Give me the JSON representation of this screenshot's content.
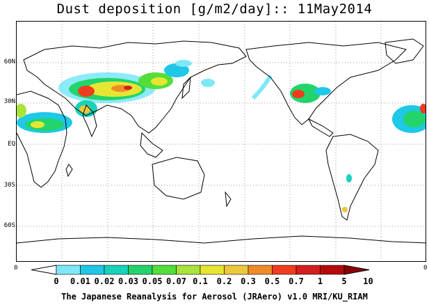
{
  "title": "Dust deposition [g/m2/day]:: 11May2014",
  "footer": "The Japanese Reanalysis for Aerosol (JRAero) v1.0 MRI/KU_RIAM",
  "lat_labels": [
    "60N",
    "30N",
    "EQ",
    "30S",
    "60S"
  ],
  "edge_labels": {
    "left": "0",
    "right": "0"
  },
  "colorbar": {
    "labels": [
      "0",
      "0.01",
      "0.02",
      "0.03",
      "0.05",
      "0.07",
      "0.1",
      "0.2",
      "0.3",
      "0.5",
      "0.7",
      "1",
      "5",
      "10"
    ],
    "colors": [
      "#ffffff",
      "#7fe8f8",
      "#1ec8e6",
      "#19d2ba",
      "#22d46a",
      "#54de3c",
      "#a8e43c",
      "#e6e632",
      "#ecc83c",
      "#f08c28",
      "#f03c1e",
      "#d21e1e",
      "#b40a0a",
      "#8c0000"
    ]
  },
  "palette": {
    "coast": "#000000",
    "grid": "#999999"
  }
}
